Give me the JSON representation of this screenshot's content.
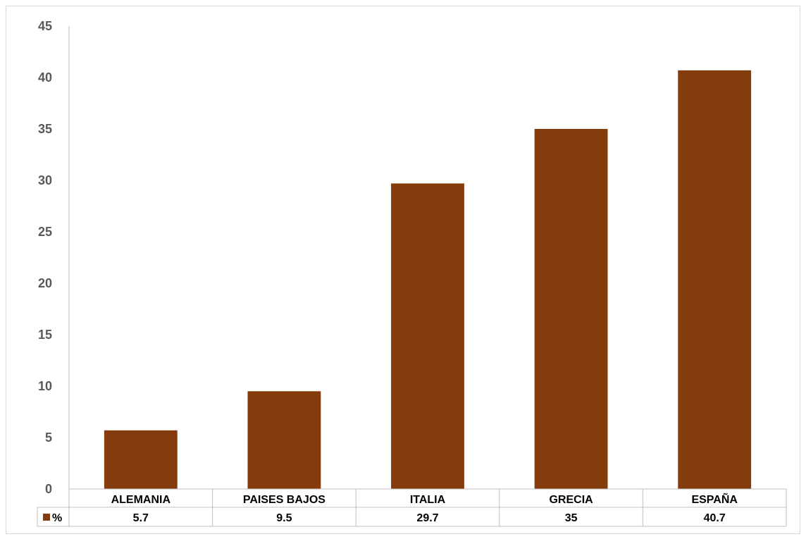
{
  "chart_data": {
    "type": "bar",
    "title": "",
    "xlabel": "",
    "ylabel": "",
    "categories": [
      "ALEMANIA",
      "PAISES BAJOS",
      "ITALIA",
      "GRECIA",
      "ESPAÑA"
    ],
    "series": [
      {
        "name": "%",
        "values": [
          5.7,
          9.5,
          29.7,
          35,
          40.7
        ],
        "value_labels": [
          "5.7",
          "9.5",
          "29.7",
          "35",
          "40.7"
        ],
        "color": "#843C0C"
      }
    ],
    "ylim": [
      0,
      45
    ],
    "yticks": [
      0,
      5,
      10,
      15,
      20,
      25,
      30,
      35,
      40,
      45
    ],
    "grid": false,
    "legend": "data-table",
    "data_table": true
  },
  "colors": {
    "bar": "#843C0C",
    "axis": "#bfbfbf",
    "tick_text": "#595959"
  }
}
